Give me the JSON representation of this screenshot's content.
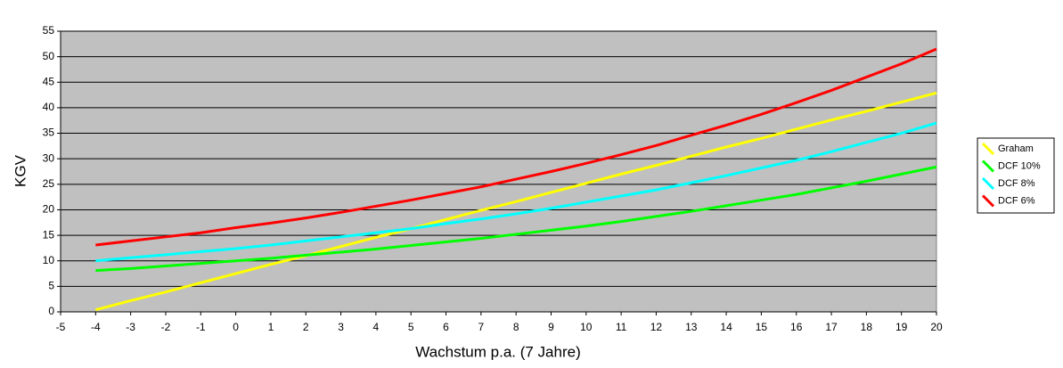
{
  "chart_data": {
    "type": "line",
    "x_label": "Wachstum p.a. (7 Jahre)",
    "y_label": "KGV",
    "x": [
      -4,
      -3,
      -2,
      -1,
      0,
      1,
      2,
      3,
      4,
      5,
      6,
      7,
      8,
      9,
      10,
      11,
      12,
      13,
      14,
      15,
      16,
      17,
      18,
      19,
      20
    ],
    "series": [
      {
        "name": "Graham",
        "color": "#ffff00",
        "values": [
          0.4,
          2.2,
          3.9,
          5.7,
          7.5,
          9.3,
          11.0,
          12.8,
          14.6,
          16.3,
          18.1,
          19.9,
          21.6,
          23.4,
          25.2,
          27.0,
          28.7,
          30.5,
          32.3,
          34.0,
          35.8,
          37.6,
          39.3,
          41.1,
          42.9
        ]
      },
      {
        "name": "DCF 10%",
        "color": "#00ff00",
        "values": [
          8.1,
          8.5,
          9.0,
          9.5,
          10.0,
          10.5,
          11.1,
          11.7,
          12.3,
          13.0,
          13.7,
          14.4,
          15.2,
          16.0,
          16.8,
          17.7,
          18.7,
          19.7,
          20.8,
          21.9,
          23.0,
          24.3,
          25.6,
          27.0,
          28.4
        ]
      },
      {
        "name": "DCF 8%",
        "color": "#00ffff",
        "values": [
          10.0,
          10.6,
          11.2,
          11.8,
          12.4,
          13.1,
          13.9,
          14.7,
          15.5,
          16.3,
          17.3,
          18.2,
          19.2,
          20.3,
          21.5,
          22.7,
          23.9,
          25.3,
          26.7,
          28.2,
          29.7,
          31.4,
          33.2,
          35.0,
          37.0
        ]
      },
      {
        "name": "DCF 6%",
        "color": "#ff0000",
        "values": [
          13.1,
          13.9,
          14.7,
          15.5,
          16.5,
          17.4,
          18.4,
          19.5,
          20.7,
          21.9,
          23.2,
          24.5,
          26.0,
          27.5,
          29.1,
          30.8,
          32.6,
          34.6,
          36.6,
          38.7,
          41.0,
          43.4,
          46.0,
          48.6,
          51.5
        ]
      }
    ],
    "xlim": [
      -5,
      20
    ],
    "xticks": [
      -5,
      -4,
      -3,
      -2,
      -1,
      0,
      1,
      2,
      3,
      4,
      5,
      6,
      7,
      8,
      9,
      10,
      11,
      12,
      13,
      14,
      15,
      16,
      17,
      18,
      19,
      20
    ],
    "ylim": [
      0,
      55
    ],
    "yticks": [
      0,
      5,
      10,
      15,
      20,
      25,
      30,
      35,
      40,
      45,
      50,
      55
    ],
    "grid": true,
    "plot_background": "#c0c0c0",
    "legend": "right"
  }
}
